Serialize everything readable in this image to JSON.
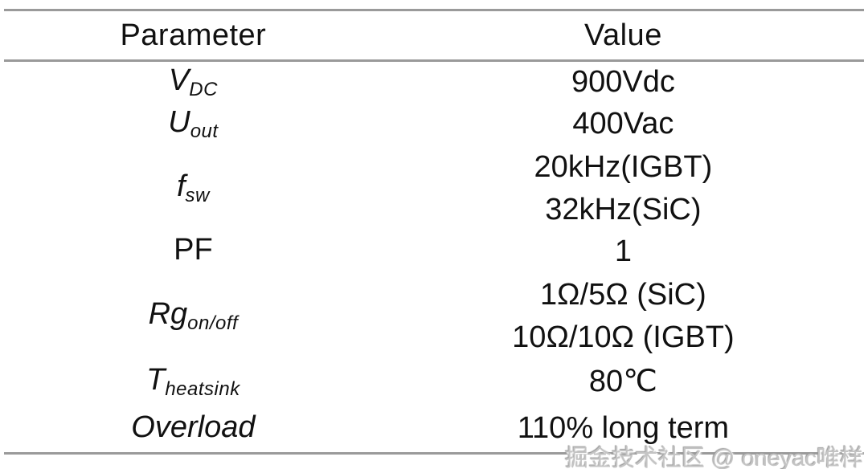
{
  "colors": {
    "background": "#ffffff",
    "rule": "#9a9a9a",
    "text": "#111111",
    "watermark": "#c4c4c4"
  },
  "table": {
    "columns": [
      "Parameter",
      "Value"
    ],
    "rows": [
      {
        "parameter": {
          "base": "V",
          "sub": "DC"
        },
        "values": [
          "900Vdc"
        ]
      },
      {
        "parameter": {
          "base": "U",
          "sub": "out"
        },
        "values": [
          "400Vac"
        ]
      },
      {
        "parameter": {
          "base": "f",
          "sub": "sw"
        },
        "values": [
          "20kHz(IGBT)",
          "32kHz(SiC)"
        ]
      },
      {
        "parameter": {
          "base": "PF",
          "sub": ""
        },
        "values": [
          "1"
        ]
      },
      {
        "parameter": {
          "base": "Rg",
          "sub": "on/off"
        },
        "values": [
          "1Ω/5Ω (SiC)",
          "10Ω/10Ω (IGBT)"
        ]
      },
      {
        "parameter": {
          "base": "T",
          "sub": "heatsink"
        },
        "values": [
          "80℃"
        ]
      },
      {
        "parameter": {
          "base": "Overload",
          "sub": ""
        },
        "values": [
          "110% long term"
        ]
      }
    ]
  },
  "watermark": {
    "text": "掘金技术社区 @ oneyac唯样"
  }
}
